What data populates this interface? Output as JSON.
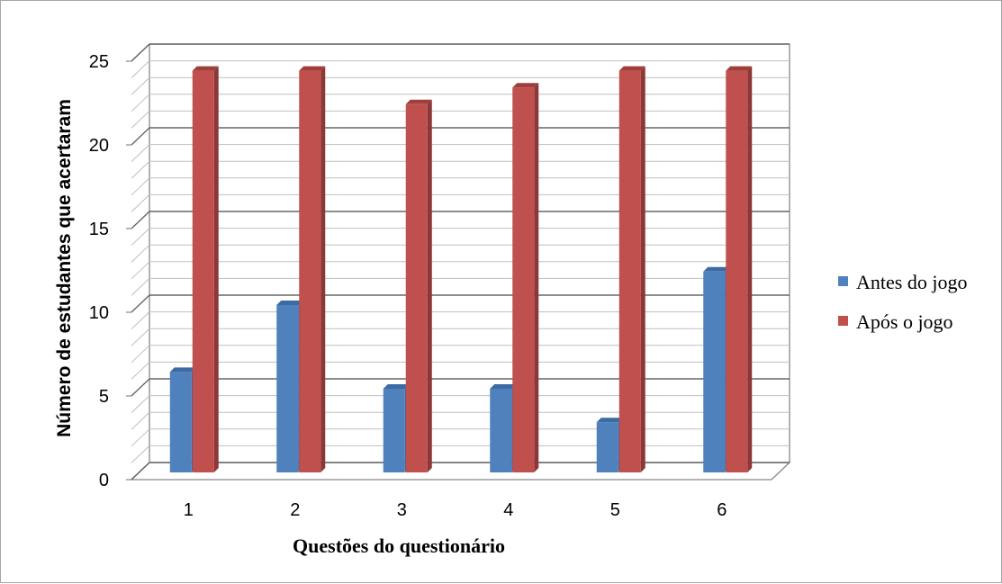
{
  "chart_data": {
    "type": "bar",
    "title": "",
    "xlabel": "Questões do questionário",
    "ylabel": "Número de estudantes que acertaram",
    "categories": [
      "1",
      "2",
      "3",
      "4",
      "5",
      "6"
    ],
    "series": [
      {
        "name": "Antes do jogo",
        "values": [
          6,
          10,
          5,
          5,
          3,
          12
        ],
        "color": "#4f81bd",
        "side_color": "#3a6395",
        "top_color": "#3d6aa3"
      },
      {
        "name": "Após o jogo",
        "values": [
          24,
          24,
          22,
          23,
          24,
          24
        ],
        "color": "#c0504d",
        "side_color": "#8c3836",
        "top_color": "#9e3f3c"
      }
    ],
    "ylim": [
      0,
      25
    ],
    "yticks": [
      "0",
      "5",
      "10",
      "15",
      "20",
      "25"
    ],
    "grid": true,
    "legend_position": "right"
  }
}
